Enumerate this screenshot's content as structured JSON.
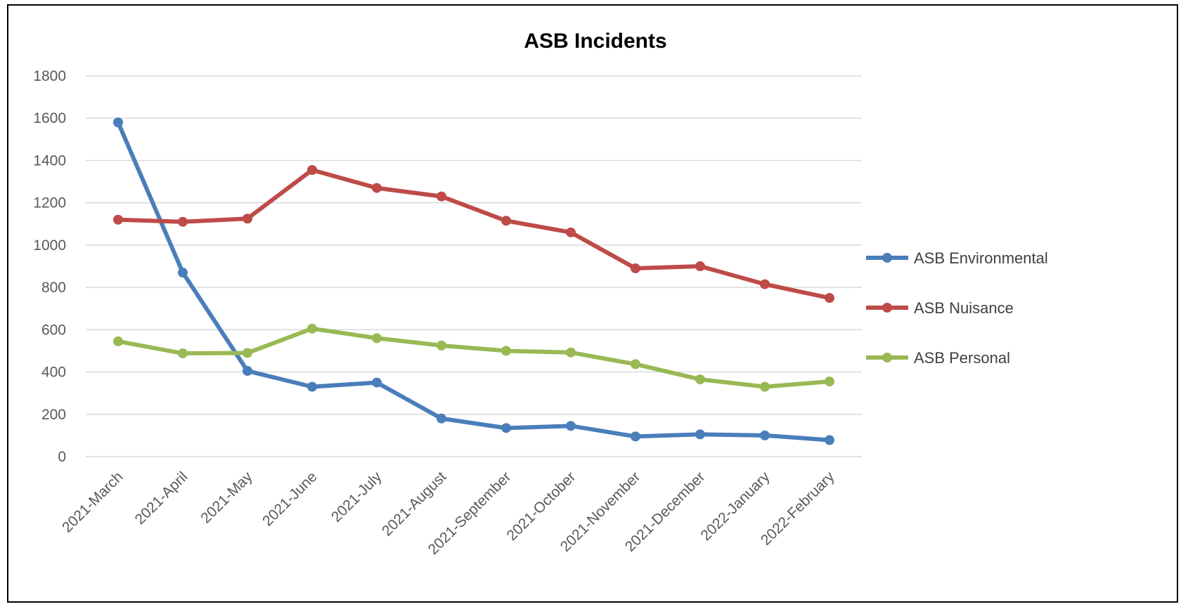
{
  "chart_data": {
    "type": "line",
    "title": "ASB Incidents",
    "xlabel": "",
    "ylabel": "",
    "ylim": [
      0,
      1800
    ],
    "ytick_step": 200,
    "grid": true,
    "legend_position": "right",
    "categories": [
      "2021-March",
      "2021-April",
      "2021-May",
      "2021-June",
      "2021-July",
      "2021-August",
      "2021-September",
      "2021-October",
      "2021-November",
      "2021-December",
      "2022-January",
      "2022-February"
    ],
    "series": [
      {
        "name": "ASB Environmental",
        "color": "#4a7ebb",
        "values": [
          1580,
          870,
          405,
          330,
          350,
          180,
          135,
          145,
          95,
          105,
          100,
          78
        ]
      },
      {
        "name": "ASB Nuisance",
        "color": "#be4b48",
        "values": [
          1120,
          1110,
          1125,
          1355,
          1270,
          1230,
          1115,
          1060,
          890,
          900,
          815,
          750
        ]
      },
      {
        "name": "ASB Personal",
        "color": "#98b954",
        "values": [
          545,
          488,
          490,
          605,
          560,
          525,
          500,
          492,
          437,
          365,
          330,
          355
        ]
      }
    ]
  }
}
